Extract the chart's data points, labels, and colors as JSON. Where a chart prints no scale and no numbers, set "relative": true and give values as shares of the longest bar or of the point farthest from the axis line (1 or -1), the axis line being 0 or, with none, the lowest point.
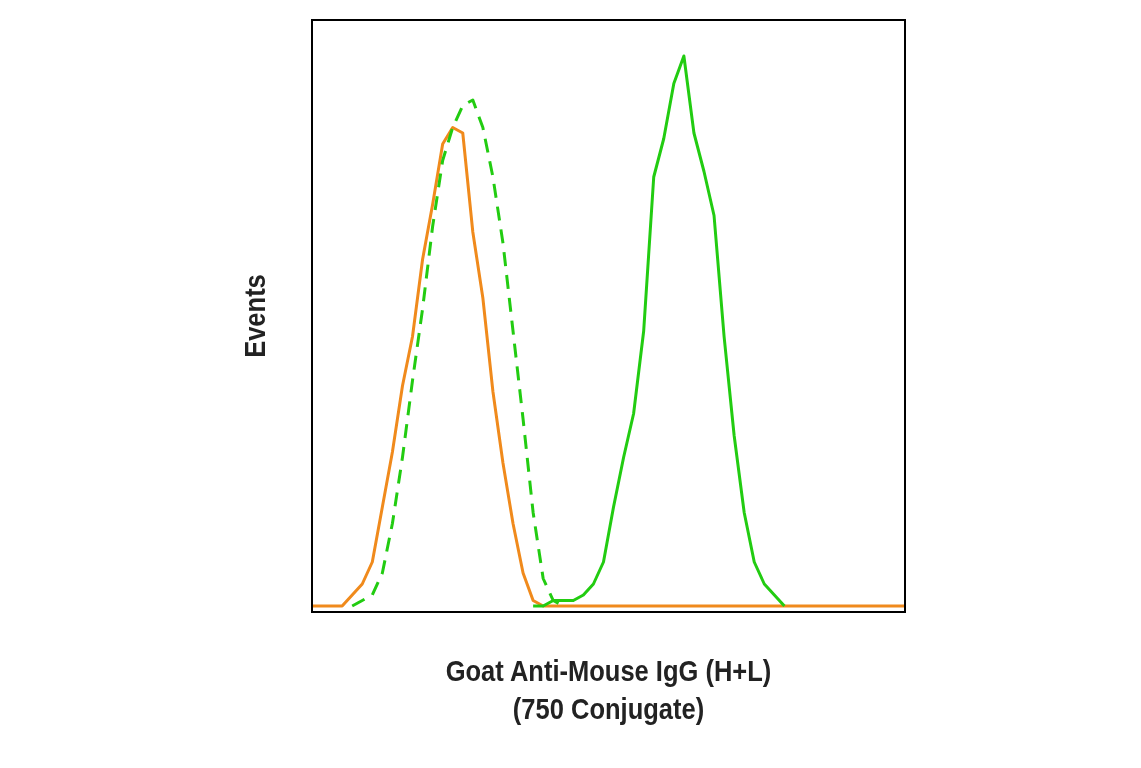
{
  "chart_data": {
    "type": "line",
    "relative": true,
    "xlabel": "Goat Anti-Mouse IgG (H+L)\n(750 Conjugate)",
    "ylabel": "Events",
    "grid": false,
    "legend": false,
    "categories": [
      null,
      null,
      null,
      null,
      null,
      null,
      null,
      null,
      null,
      null,
      null,
      null,
      null,
      null,
      null,
      null,
      null,
      null,
      null,
      null,
      null,
      null,
      null,
      null,
      null,
      null,
      null,
      null,
      null,
      null,
      null,
      null,
      null,
      null,
      null,
      null,
      null,
      null,
      null,
      null,
      null,
      null,
      null,
      null,
      null,
      null,
      null,
      null,
      null,
      null,
      null,
      null,
      null,
      null,
      null,
      null,
      null,
      null,
      null,
      null
    ],
    "series": [
      {
        "color": "#22cc11",
        "line_style": "solid",
        "values": [
          null,
          null,
          null,
          null,
          null,
          null,
          null,
          null,
          null,
          null,
          null,
          null,
          null,
          null,
          null,
          null,
          null,
          null,
          null,
          null,
          null,
          null,
          0,
          0,
          0.01,
          0.01,
          0.01,
          0.02,
          0.04,
          0.08,
          0.18,
          0.27,
          0.35,
          0.5,
          0.78,
          0.85,
          0.95,
          1,
          0.86,
          0.79,
          0.71,
          0.49,
          0.31,
          0.17,
          0.08,
          0.04,
          0.02,
          0,
          null,
          null,
          null,
          null,
          null,
          null,
          null,
          null,
          null,
          null,
          null,
          null
        ]
      },
      {
        "color": "#22cc11",
        "line_style": "dashed",
        "values": [
          null,
          null,
          null,
          null,
          0,
          0.01,
          0.02,
          0.06,
          0.15,
          0.27,
          0.41,
          0.54,
          0.69,
          0.81,
          0.87,
          0.91,
          0.92,
          0.87,
          0.78,
          0.66,
          0.5,
          0.34,
          0.17,
          0.05,
          0.01,
          0,
          null,
          null,
          null,
          null,
          null,
          null,
          null,
          null,
          null,
          null,
          null,
          null,
          null,
          null,
          null,
          null,
          null,
          null,
          null,
          null,
          null,
          null,
          null,
          null,
          null,
          null,
          null,
          null,
          null,
          null,
          null,
          null,
          null,
          null
        ]
      },
      {
        "color": "#f08a1c",
        "line_style": "solid",
        "values": [
          0,
          0,
          0,
          0,
          0.02,
          0.04,
          0.08,
          0.18,
          0.28,
          0.4,
          0.49,
          0.63,
          0.73,
          0.84,
          0.87,
          0.86,
          0.68,
          0.56,
          0.39,
          0.26,
          0.15,
          0.06,
          0.01,
          0,
          0,
          0,
          0,
          0,
          0,
          0,
          0,
          0,
          0,
          0,
          0,
          0,
          0,
          0,
          0,
          0,
          0,
          0,
          0,
          0,
          0,
          0,
          0,
          0,
          0,
          0,
          0,
          0,
          0,
          0,
          0,
          0,
          0,
          0,
          0,
          0
        ]
      }
    ]
  }
}
